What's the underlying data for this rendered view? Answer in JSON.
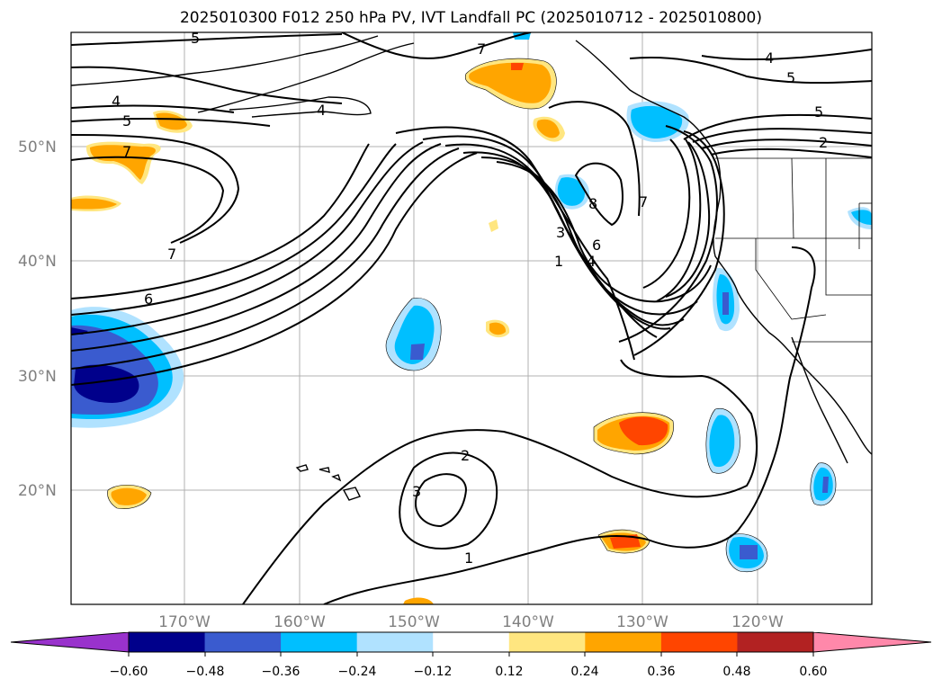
{
  "title": "2025010300 F012 250 hPa PV, IVT Landfall PC (2025010712 - 2025010800)",
  "map": {
    "lat_labels": [
      "50°N",
      "40°N",
      "30°N",
      "20°N"
    ],
    "lon_labels": [
      "170°W",
      "160°W",
      "150°W",
      "140°W",
      "130°W",
      "120°W"
    ],
    "contour_labels": [
      "5",
      "7",
      "4",
      "5",
      "4",
      "7",
      "6",
      "4",
      "5",
      "5",
      "2",
      "8",
      "7",
      "3",
      "6",
      "1",
      "4",
      "7",
      "2",
      "3",
      "1"
    ]
  },
  "colorbar": {
    "ticks": [
      "−0.60",
      "−0.48",
      "−0.36",
      "−0.24",
      "−0.12",
      "0.12",
      "0.24",
      "0.36",
      "0.48",
      "0.60"
    ],
    "colors": [
      "#9932cc",
      "#00008b",
      "#3a5bcf",
      "#00bfff",
      "#b0e2ff",
      "#ffffff",
      "#ffe680",
      "#ffa500",
      "#ff4500",
      "#b22222",
      "#ff88aa"
    ]
  }
}
